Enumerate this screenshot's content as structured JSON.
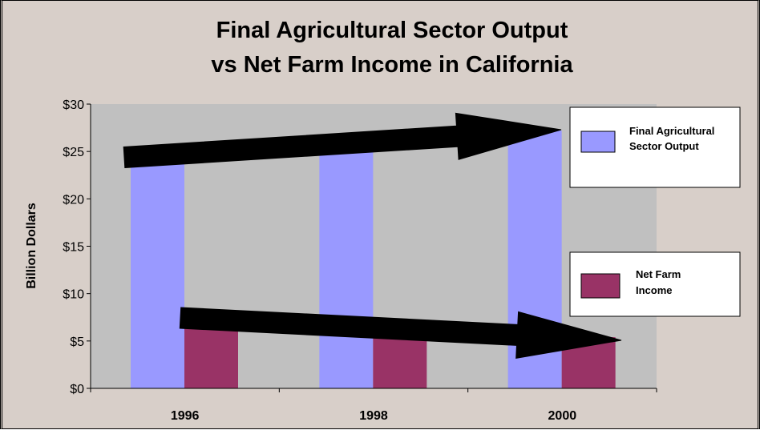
{
  "chart_data": {
    "type": "bar",
    "title": [
      "Final Agricultural Sector Output",
      "vs Net Farm Income in California"
    ],
    "ylabel": "Billion Dollars",
    "xlabel": "",
    "categories": [
      "1996",
      "1998",
      "2000"
    ],
    "series": [
      {
        "name": "Final Agricultural Sector Output",
        "values": [
          24.2,
          25.2,
          27.2
        ],
        "color": "#9999ff"
      },
      {
        "name": "Net Farm Income",
        "values": [
          6.3,
          5.4,
          5.4
        ],
        "color": "#993366"
      }
    ],
    "ylim": [
      0,
      30
    ],
    "yticks": [
      0,
      5,
      10,
      15,
      20,
      25,
      30
    ],
    "ytick_format": "$",
    "grid": false,
    "plot_background": "#c0c0c0",
    "legend_placement": "right, one box per series",
    "annotations": [
      {
        "type": "arrow",
        "from": [
          "1996",
          24.5
        ],
        "to": [
          "2000",
          27.5
        ],
        "color": "#000000",
        "meaning": "output rising"
      },
      {
        "type": "arrow",
        "from": [
          "1996",
          7.5
        ],
        "to": [
          "2000",
          5.0
        ],
        "color": "#000000",
        "meaning": "income falling"
      }
    ]
  }
}
